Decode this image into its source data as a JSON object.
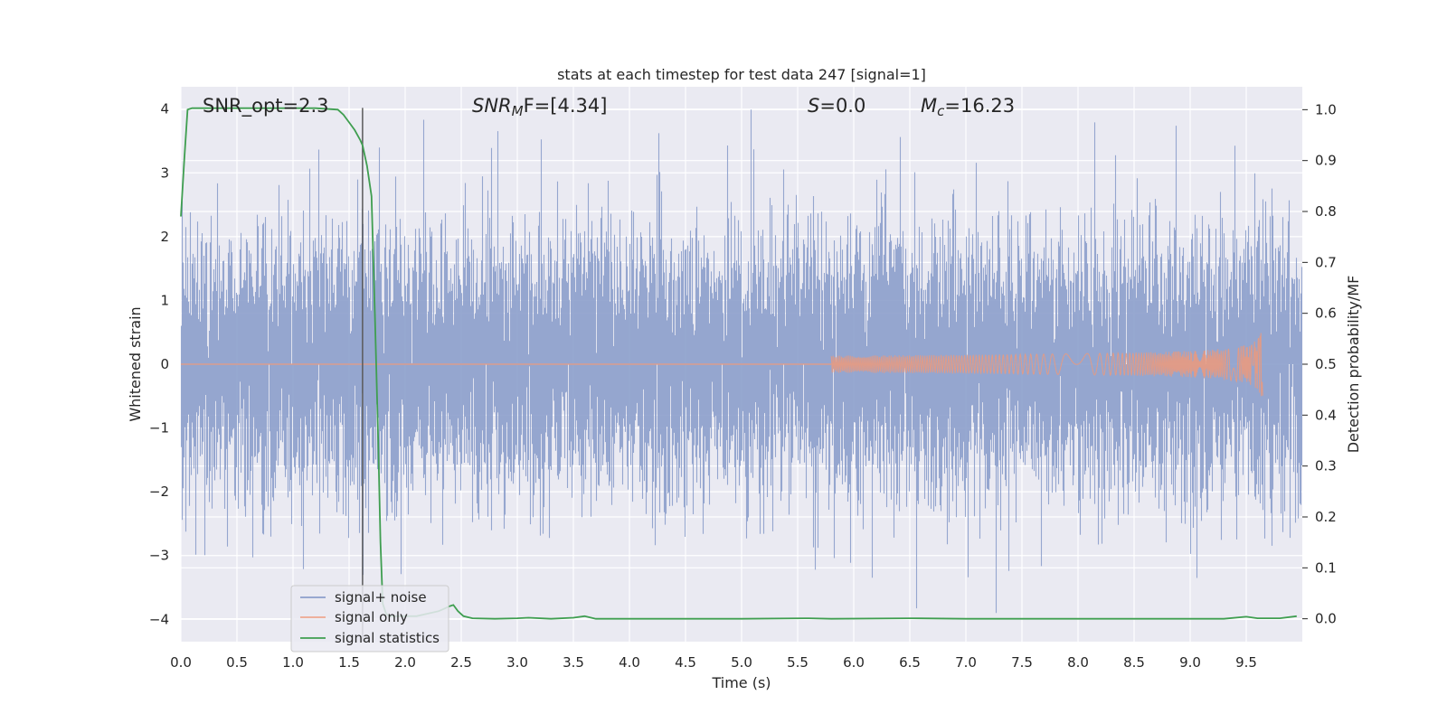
{
  "chart_data": {
    "type": "line",
    "title": "stats at each timestep for test data 247 [signal=1]",
    "xlabel": "Time (s)",
    "ylabel": "Whitened strain",
    "y2label": "Detection probability/MF",
    "xlim": [
      0.0,
      10.0
    ],
    "ylim": [
      -4.35,
      4.35
    ],
    "y2lim": [
      -0.045,
      1.045
    ],
    "x_ticks": [
      "0.0",
      "0.5",
      "1.0",
      "1.5",
      "2.0",
      "2.5",
      "3.0",
      "3.5",
      "4.0",
      "4.5",
      "5.0",
      "5.5",
      "6.0",
      "6.5",
      "7.0",
      "7.5",
      "8.0",
      "8.5",
      "9.0",
      "9.5"
    ],
    "y_ticks": [
      "4",
      "3",
      "2",
      "1",
      "0",
      "−1",
      "−2",
      "−3",
      "−4"
    ],
    "y_tick_values": [
      4,
      3,
      2,
      1,
      0,
      -1,
      -2,
      -3,
      -4
    ],
    "y2_ticks": [
      "1.0",
      "0.9",
      "0.8",
      "0.7",
      "0.6",
      "0.5",
      "0.4",
      "0.3",
      "0.2",
      "0.1",
      "0.0"
    ],
    "y2_tick_values": [
      1.0,
      0.9,
      0.8,
      0.7,
      0.6,
      0.5,
      0.4,
      0.3,
      0.2,
      0.1,
      0.0
    ],
    "grid": true,
    "annotations": {
      "snr_opt": "SNR_opt=2.3",
      "snr_mf_prefix": "SNR",
      "snr_mf_sub": "M",
      "snr_mf_suffix": "F=[4.34]",
      "s_prefix": "S",
      "s_suffix": "=0.0",
      "mc_prefix": "M",
      "mc_sub": "c",
      "mc_suffix": "=16.23"
    },
    "vline_x": 1.62,
    "legend": {
      "placement": "lower-left",
      "entries": [
        {
          "label": "signal+ noise",
          "color": "#8c9fcb"
        },
        {
          "label": "signal only",
          "color": "#eea88f"
        },
        {
          "label": "signal statistics",
          "color": "#3f9e50"
        }
      ]
    },
    "series": [
      {
        "name": "signal+ noise",
        "axis": "left",
        "style": "noise",
        "color": "#8c9fcb",
        "envelope_sigma": 1.25,
        "peak_max": 4.0,
        "peak_min": -3.9
      },
      {
        "name": "signal only",
        "axis": "left",
        "style": "chirp",
        "color": "#e89a80",
        "t_start": 5.8,
        "t_merge": 9.65,
        "peak_amplitude": 0.5
      },
      {
        "name": "signal statistics",
        "axis": "right",
        "color": "#3f9e50",
        "x": [
          0.0,
          0.03,
          0.06,
          0.1,
          0.2,
          0.4,
          0.8,
          1.2,
          1.4,
          1.45,
          1.5,
          1.55,
          1.6,
          1.62,
          1.66,
          1.7,
          1.73,
          1.76,
          1.78,
          1.8,
          1.83,
          1.86,
          1.9,
          2.0,
          2.1,
          2.2,
          2.3,
          2.35,
          2.4,
          2.43,
          2.47,
          2.52,
          2.6,
          2.8,
          3.0,
          3.1,
          3.3,
          3.5,
          3.6,
          3.7,
          4.0,
          5.0,
          5.6,
          5.8,
          6.5,
          7.0,
          8.0,
          9.0,
          9.3,
          9.5,
          9.6,
          9.8,
          9.95
        ],
        "values": [
          0.79,
          0.9,
          1.0,
          1.003,
          1.003,
          1.003,
          1.003,
          1.003,
          1.0,
          0.99,
          0.975,
          0.96,
          0.94,
          0.93,
          0.89,
          0.83,
          0.6,
          0.35,
          0.15,
          0.03,
          0.01,
          0.005,
          0.005,
          0.005,
          0.005,
          0.01,
          0.015,
          0.02,
          0.025,
          0.027,
          0.015,
          0.005,
          0.001,
          0.0,
          0.001,
          0.002,
          0.0,
          0.002,
          0.005,
          0.0,
          0.0,
          0.0,
          0.001,
          0.0,
          0.001,
          0.0,
          0.0,
          0.0,
          0.0,
          0.004,
          0.001,
          0.001,
          0.005
        ]
      }
    ]
  }
}
